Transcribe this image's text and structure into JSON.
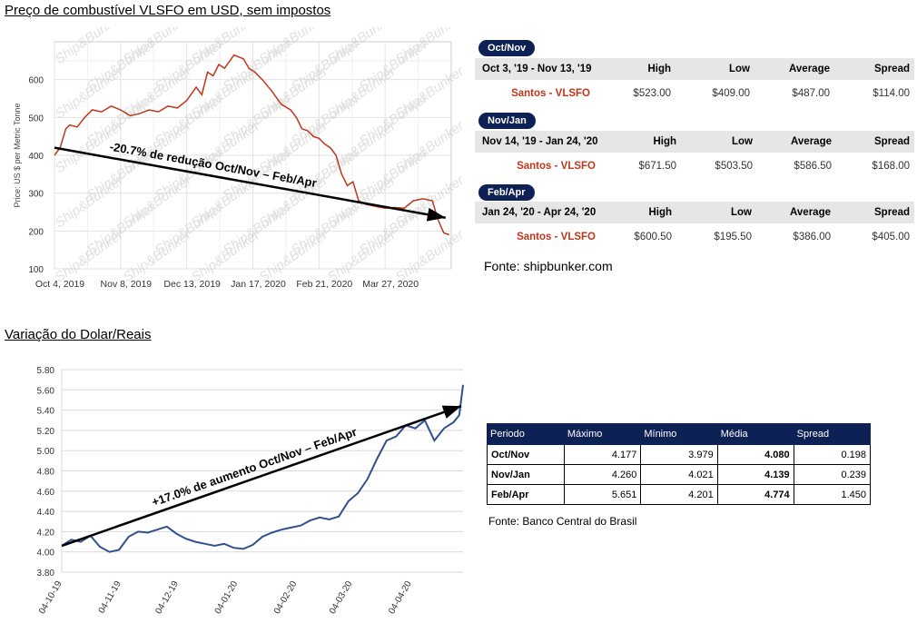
{
  "fuel_section": {
    "title": "Preço de combustível VLSFO em USD, sem impostos",
    "source": "Fonte: shipbunker.com"
  },
  "dollar_section": {
    "title": "Variação do Dolar/Reais",
    "source": "Fonte: Banco Central do Brasil"
  },
  "colors": {
    "fuel_line": "#c0361a",
    "dollar_line": "#2f4f8f",
    "header_navy": "#0d2154",
    "trend": "#000000"
  },
  "periods": [
    {
      "pill": "Oct/Nov",
      "range": "Oct 3, '19 - Nov 13, '19",
      "headers": [
        "High",
        "Low",
        "Average",
        "Spread"
      ],
      "label": "Santos - VLSFO",
      "values": [
        "$523.00",
        "$409.00",
        "$487.00",
        "$114.00"
      ]
    },
    {
      "pill": "Nov/Jan",
      "range": "Nov 14, '19 - Jan 24, '20",
      "headers": [
        "High",
        "Low",
        "Average",
        "Spread"
      ],
      "label": "Santos - VLSFO",
      "values": [
        "$671.50",
        "$503.50",
        "$586.50",
        "$168.00"
      ]
    },
    {
      "pill": "Feb/Apr",
      "range": "Jan 24, '20 - Apr 24, '20",
      "headers": [
        "High",
        "Low",
        "Average",
        "Spread"
      ],
      "label": "Santos - VLSFO",
      "values": [
        "$600.50",
        "$195.50",
        "$386.00",
        "$405.00"
      ]
    }
  ],
  "dollar_table": {
    "headers": [
      "Periodo",
      "Máximo",
      "Mínimo",
      "Média",
      "Spread"
    ],
    "rows": [
      [
        "Oct/Nov",
        "4.177",
        "3.979",
        "4.080",
        "0.198"
      ],
      [
        "Nov/Jan",
        "4.260",
        "4.021",
        "4.139",
        "0.239"
      ],
      [
        "Feb/Apr",
        "5.651",
        "4.201",
        "4.774",
        "1.450"
      ]
    ]
  },
  "chart_data": [
    {
      "type": "line",
      "ylabel": "Price: US $ per Metric Tonne",
      "ylim": [
        100,
        700
      ],
      "y_ticks": [
        100,
        200,
        300,
        400,
        500,
        600
      ],
      "x_tick_labels": [
        "Oct 4, 2019",
        "Nov 8, 2019",
        "Dec 13, 2019",
        "Jan 17, 2020",
        "Feb 21, 2020",
        "Mar 27, 2020"
      ],
      "x_range_days": [
        0,
        210
      ],
      "x_tick_days": [
        0,
        35,
        70,
        105,
        140,
        175
      ],
      "grid": true,
      "watermark": "Ship&Bunker",
      "series": [
        {
          "x": [
            0,
            3,
            6,
            8,
            12,
            16,
            20,
            25,
            30,
            35,
            40,
            45,
            50,
            55,
            60,
            65,
            70,
            75,
            78,
            81,
            84,
            87,
            90,
            95,
            100,
            103,
            106,
            110,
            115,
            120,
            125,
            128,
            131,
            134,
            137,
            140,
            143,
            146,
            149,
            152,
            155,
            158,
            161,
            165,
            170,
            175,
            180,
            185,
            190,
            195,
            200,
            203,
            206,
            209
          ],
          "y": [
            400,
            420,
            470,
            480,
            475,
            500,
            520,
            515,
            530,
            520,
            505,
            510,
            520,
            515,
            530,
            525,
            545,
            580,
            560,
            620,
            610,
            640,
            630,
            665,
            655,
            630,
            620,
            600,
            570,
            535,
            520,
            500,
            470,
            465,
            450,
            445,
            430,
            420,
            400,
            350,
            320,
            330,
            280,
            270,
            265,
            260,
            262,
            260,
            280,
            285,
            280,
            230,
            195,
            190
          ]
        }
      ],
      "trend_line": {
        "from": [
          0,
          420
        ],
        "to": [
          207,
          235
        ]
      },
      "annotation": "-20.7% de redução Oct/Nov – Feb/Apr"
    },
    {
      "type": "line",
      "ylim": [
        3.8,
        5.8
      ],
      "y_ticks": [
        3.8,
        4.0,
        4.2,
        4.4,
        4.6,
        4.8,
        5.0,
        5.2,
        5.4,
        5.6,
        5.8
      ],
      "x_tick_labels": [
        "04-10-19",
        "04-11-19",
        "04-12-19",
        "04-01-20",
        "04-02-20",
        "04-03-20",
        "04-04-20"
      ],
      "x_range_days": [
        0,
        210
      ],
      "x_tick_days": [
        0,
        31,
        61,
        92,
        123,
        152,
        183
      ],
      "grid": true,
      "series": [
        {
          "x": [
            0,
            5,
            10,
            15,
            20,
            25,
            30,
            35,
            40,
            45,
            50,
            55,
            60,
            65,
            70,
            75,
            80,
            85,
            90,
            95,
            100,
            105,
            110,
            115,
            120,
            125,
            130,
            135,
            140,
            145,
            150,
            155,
            160,
            165,
            170,
            175,
            180,
            185,
            190,
            195,
            200,
            205,
            208,
            210
          ],
          "y": [
            4.06,
            4.12,
            4.1,
            4.16,
            4.05,
            4.0,
            4.02,
            4.15,
            4.2,
            4.19,
            4.22,
            4.25,
            4.18,
            4.13,
            4.1,
            4.08,
            4.06,
            4.08,
            4.04,
            4.03,
            4.07,
            4.15,
            4.19,
            4.22,
            4.24,
            4.26,
            4.31,
            4.34,
            4.32,
            4.35,
            4.5,
            4.58,
            4.72,
            4.92,
            5.1,
            5.14,
            5.25,
            5.22,
            5.3,
            5.1,
            5.22,
            5.28,
            5.35,
            5.65
          ]
        }
      ],
      "trend_line": {
        "from": [
          0,
          4.06
        ],
        "to": [
          210,
          5.44
        ]
      },
      "annotation": "+17.0% de aumento Oct/Nov – Feb/Apr"
    }
  ]
}
